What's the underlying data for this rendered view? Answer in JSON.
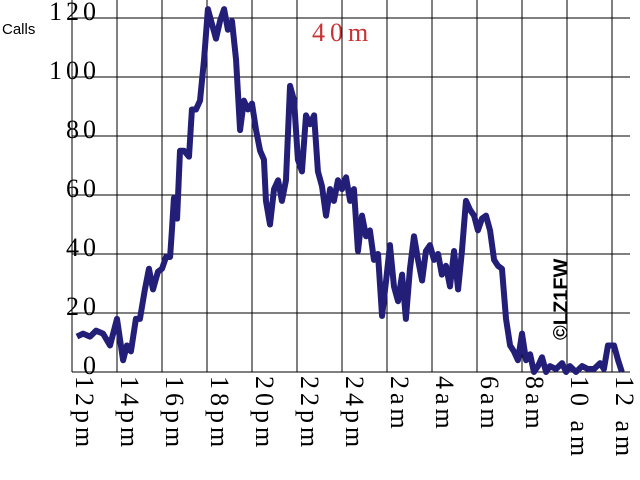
{
  "chart_data": {
    "type": "line",
    "title": "40m",
    "y_label": "Calls",
    "watermark": "©LZ1FW",
    "x": [
      0.22,
      0.49,
      0.8,
      1.07,
      1.38,
      1.69,
      2.0,
      2.27,
      2.44,
      2.62,
      2.84,
      3.02,
      3.24,
      3.42,
      3.6,
      3.82,
      4.0,
      4.18,
      4.36,
      4.44,
      4.53,
      4.67,
      4.8,
      4.98,
      5.2,
      5.33,
      5.51,
      5.69,
      5.87,
      6.04,
      6.22,
      6.4,
      6.58,
      6.76,
      6.93,
      7.11,
      7.29,
      7.47,
      7.64,
      7.82,
      8.0,
      8.18,
      8.36,
      8.53,
      8.62,
      8.8,
      8.98,
      9.16,
      9.33,
      9.51,
      9.69,
      9.87,
      10.04,
      10.22,
      10.4,
      10.58,
      10.76,
      10.93,
      11.11,
      11.29,
      11.47,
      11.64,
      11.82,
      12.0,
      12.18,
      12.36,
      12.53,
      12.71,
      12.89,
      13.07,
      13.24,
      13.42,
      13.6,
      13.78,
      13.96,
      14.13,
      14.31,
      14.49,
      14.67,
      14.84,
      15.02,
      15.2,
      15.38,
      15.56,
      15.73,
      15.91,
      16.09,
      16.27,
      16.44,
      16.62,
      16.8,
      16.98,
      17.16,
      17.33,
      17.51,
      17.69,
      17.87,
      18.04,
      18.22,
      18.4,
      18.58,
      18.76,
      18.93,
      19.11,
      19.29,
      19.47,
      19.64,
      19.82,
      20.0,
      20.18,
      20.36,
      20.53,
      20.71,
      20.89,
      21.07,
      21.24,
      21.51,
      21.78,
      21.96,
      22.13,
      22.4,
      22.67,
      22.93,
      23.2,
      23.47,
      23.64,
      23.82,
      24.09,
      24.27,
      24.44
    ],
    "series": [
      {
        "color": "#231f78",
        "values": [
          12,
          13,
          12,
          14,
          13,
          9,
          18,
          4,
          9,
          7,
          18,
          18,
          28,
          35,
          28,
          34,
          35,
          39,
          39,
          48,
          59,
          52,
          75,
          75,
          73,
          89,
          89,
          92,
          106,
          123,
          118,
          113,
          119,
          123,
          116,
          119,
          106,
          82,
          92,
          89,
          91,
          82,
          75,
          72,
          58,
          50,
          62,
          65,
          58,
          65,
          97,
          92,
          72,
          68,
          87,
          84,
          87,
          68,
          63,
          53,
          62,
          58,
          65,
          62,
          66,
          58,
          62,
          41,
          53,
          46,
          48,
          38,
          40,
          19,
          31,
          43,
          29,
          24,
          33,
          18,
          35,
          46,
          38,
          31,
          41,
          43,
          38,
          40,
          33,
          36,
          29,
          41,
          28,
          41,
          58,
          55,
          53,
          48,
          52,
          53,
          48,
          38,
          36,
          35,
          18,
          9,
          7,
          4,
          13,
          4,
          6,
          0,
          2,
          5,
          0,
          2,
          1,
          3,
          0,
          2,
          0,
          2,
          1,
          1,
          3,
          1,
          9,
          9,
          4,
          0
        ]
      }
    ],
    "xlim": [
      0,
      24.8
    ],
    "ylim": [
      0,
      120
    ],
    "xticks": [
      {
        "value": 0,
        "label": "12pm"
      },
      {
        "value": 2,
        "label": "14pm"
      },
      {
        "value": 4,
        "label": "16pm"
      },
      {
        "value": 6,
        "label": "18pm"
      },
      {
        "value": 8,
        "label": "20pm"
      },
      {
        "value": 10,
        "label": "22pm"
      },
      {
        "value": 12,
        "label": "24pm"
      },
      {
        "value": 14,
        "label": "2am"
      },
      {
        "value": 16,
        "label": "4am"
      },
      {
        "value": 18,
        "label": "6am"
      },
      {
        "value": 20,
        "label": "8am"
      },
      {
        "value": 22,
        "label": "10 am"
      },
      {
        "value": 24,
        "label": "12 am"
      }
    ],
    "yticks": [
      0,
      20,
      40,
      60,
      80,
      100,
      120
    ],
    "grid": true
  }
}
